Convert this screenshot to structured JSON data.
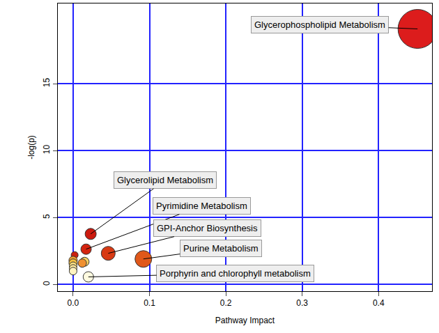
{
  "chart_data": {
    "type": "scatter",
    "x_label": "Pathway Impact",
    "y_label": "-log(p)",
    "x": [
      0.451,
      0.023,
      0.017,
      0.046,
      0.092,
      0.02,
      0.002,
      0.0,
      0.0,
      0.015,
      0.012,
      0.0,
      0.0,
      0.0
    ],
    "values": [
      19.1,
      3.78,
      2.64,
      2.33,
      1.91,
      0.57,
      2.2,
      1.8,
      1.6,
      1.7,
      1.6,
      1.4,
      1.2,
      1.0
    ],
    "sizes": [
      56,
      16,
      15,
      20,
      24,
      15,
      10,
      12,
      12,
      13,
      12,
      11,
      11,
      11
    ],
    "labels": [
      "Glycerophospholipid Metabolism",
      "Glycerolipid Metabolism",
      "Pyrimidine Metabolism",
      "GPI-Anchor Biosynthesis",
      "Purine Metabolism",
      "Porphyrin and chlorophyll metabolism",
      null,
      null,
      null,
      null,
      null,
      null,
      null,
      null
    ],
    "colors": [
      "#dc1c1c",
      "#cc1a0e",
      "#d42410",
      "#d83a14",
      "#e0581a",
      "#fffbe0",
      "#cc2010",
      "#f0a030",
      "#f5c040",
      "#f7d060",
      "#f09030",
      "#fde080",
      "#fee89a",
      "#fff3c0"
    ],
    "xlim": [
      -0.02,
      0.47
    ],
    "ylim": [
      -0.5,
      21
    ],
    "xticks": [
      {
        "value": 0,
        "label": "0.0"
      },
      {
        "value": 0.1,
        "label": "0.1"
      },
      {
        "value": 0.2,
        "label": "0.2"
      },
      {
        "value": 0.3,
        "label": "0.3"
      },
      {
        "value": 0.4,
        "label": "0.4"
      }
    ],
    "yticks": [
      0,
      5,
      10,
      15
    ],
    "grid": true
  }
}
